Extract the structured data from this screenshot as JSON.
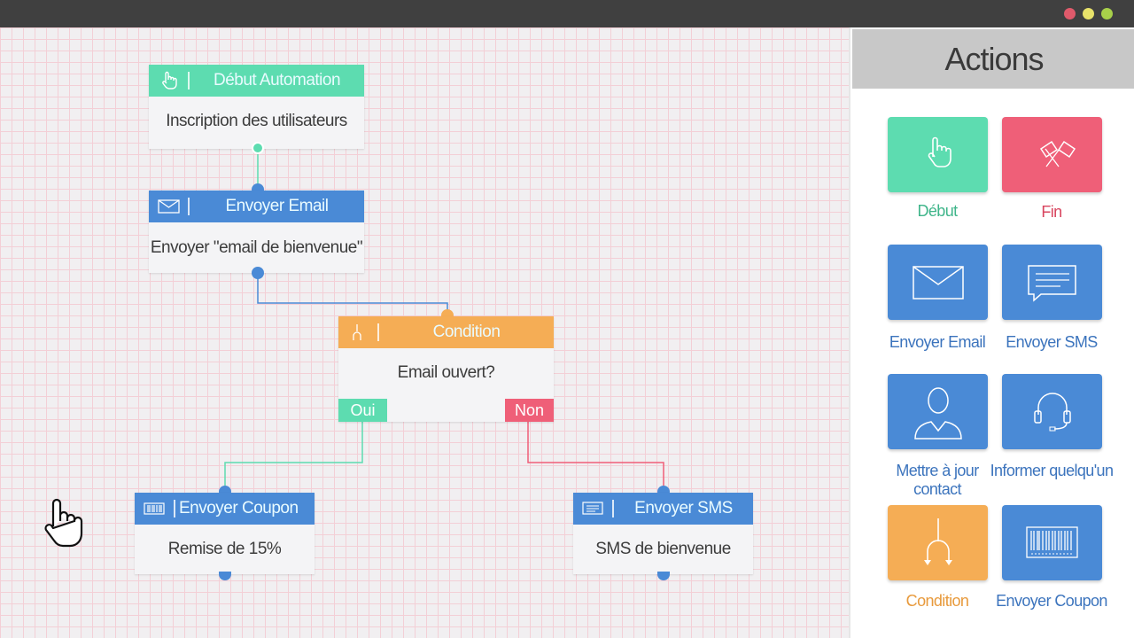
{
  "window": {
    "controls": [
      "close",
      "minimize",
      "maximize"
    ],
    "colors": {
      "close": "#e05a6b",
      "minimize": "#e8e26a",
      "maximize": "#a8d04a"
    }
  },
  "colors": {
    "green": "#5ddcb0",
    "blue": "#4a8ad6",
    "orange": "#f5ad55",
    "red": "#ef5f78"
  },
  "flow": {
    "start": {
      "title": "Début Automation",
      "body": "Inscription des utilisateurs",
      "icon": "hand-pointer-icon"
    },
    "email": {
      "title": "Envoyer Email",
      "body": "Envoyer \"email de bienvenue\"",
      "icon": "envelope-icon"
    },
    "condition": {
      "title": "Condition",
      "body": "Email ouvert?",
      "yes": "Oui",
      "no": "Non",
      "icon": "fork-icon"
    },
    "coupon": {
      "title": "Envoyer Coupon",
      "body": "Remise de 15%",
      "icon": "barcode-icon"
    },
    "sms": {
      "title": "Envoyer SMS",
      "body": "SMS de bienvenue",
      "icon": "message-icon"
    }
  },
  "panel": {
    "title": "Actions",
    "actions": [
      {
        "label": "Début",
        "icon": "hand-pointer-icon"
      },
      {
        "label": "Fin",
        "icon": "crossed-flags-icon"
      },
      {
        "label": "Envoyer Email",
        "icon": "envelope-icon"
      },
      {
        "label": "Envoyer SMS",
        "icon": "message-icon"
      },
      {
        "label": "Mettre à jour contact",
        "icon": "user-icon"
      },
      {
        "label": "Informer quelqu'un",
        "icon": "headset-icon"
      },
      {
        "label": "Condition",
        "icon": "fork-icon"
      },
      {
        "label": "Envoyer Coupon",
        "icon": "barcode-icon"
      }
    ]
  }
}
